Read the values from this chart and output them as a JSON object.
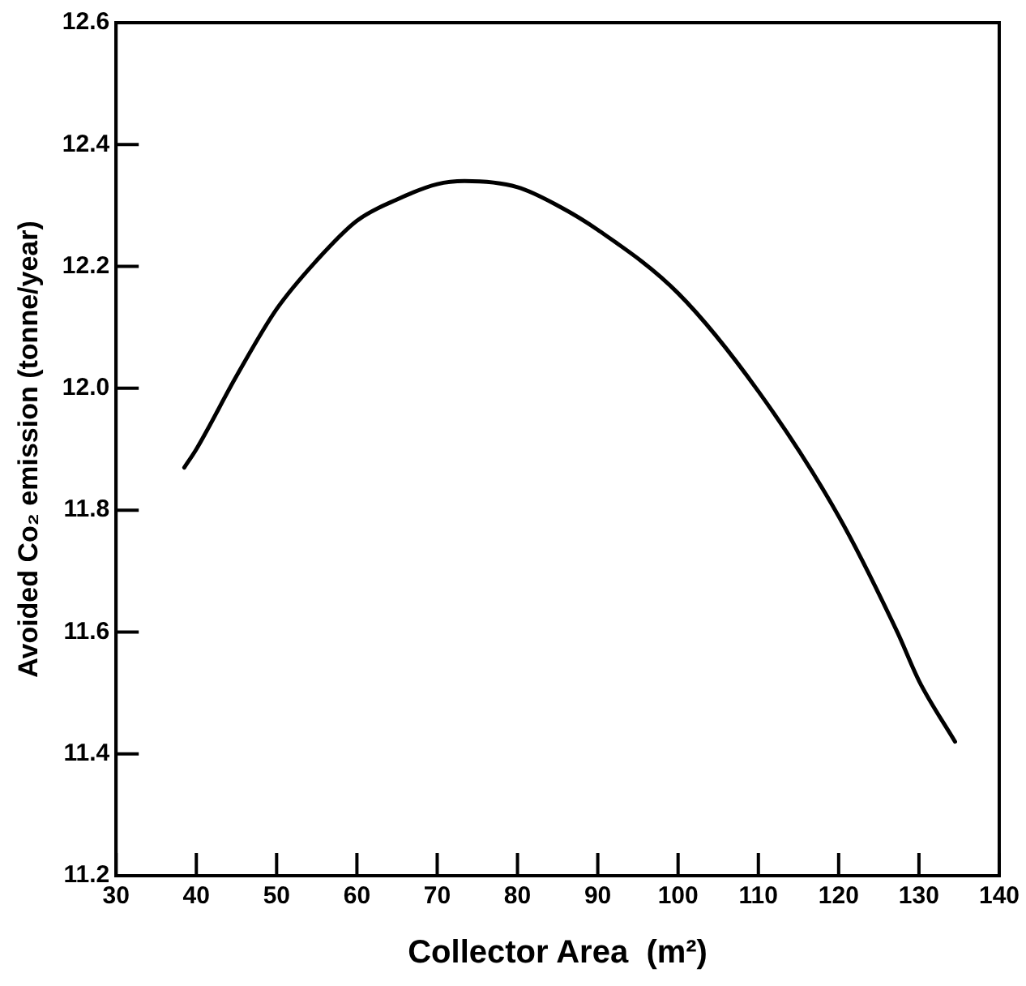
{
  "chart_data": {
    "type": "line",
    "xlabel": "Collector Area  (m²)",
    "ylabel": "Avoided Co₂ emission (tonne/year)",
    "x": [
      38.5,
      40,
      45,
      50,
      55,
      60,
      65,
      70,
      73.4,
      80,
      85,
      90,
      100,
      110,
      120,
      127.3,
      130,
      134.5
    ],
    "series": [
      {
        "color": "#000000",
        "values": [
          11.87,
          11.9,
          12.02,
          12.13,
          12.21,
          12.275,
          12.31,
          12.335,
          12.34,
          12.33,
          12.3,
          12.26,
          12.156,
          11.995,
          11.79,
          11.6,
          11.52,
          11.42
        ]
      }
    ],
    "xlim": [
      30,
      140
    ],
    "xticks": [
      30,
      40,
      50,
      60,
      70,
      80,
      90,
      100,
      110,
      120,
      130,
      140
    ],
    "ylim": [
      11.2,
      12.6
    ],
    "yticks": [
      {
        "value": 11.2,
        "label": "11.2"
      },
      {
        "value": 11.4,
        "label": "11.4"
      },
      {
        "value": 11.6,
        "label": "11.6"
      },
      {
        "value": 11.8,
        "label": "11.8"
      },
      {
        "value": 12,
        "label": "12.0"
      },
      {
        "value": 12.2,
        "label": "12.2"
      },
      {
        "value": 12.4,
        "label": "12.4"
      },
      {
        "value": 12.6,
        "label": "12.6"
      }
    ],
    "grid": false,
    "legend": false,
    "marker": "none",
    "line_style": "solid"
  }
}
